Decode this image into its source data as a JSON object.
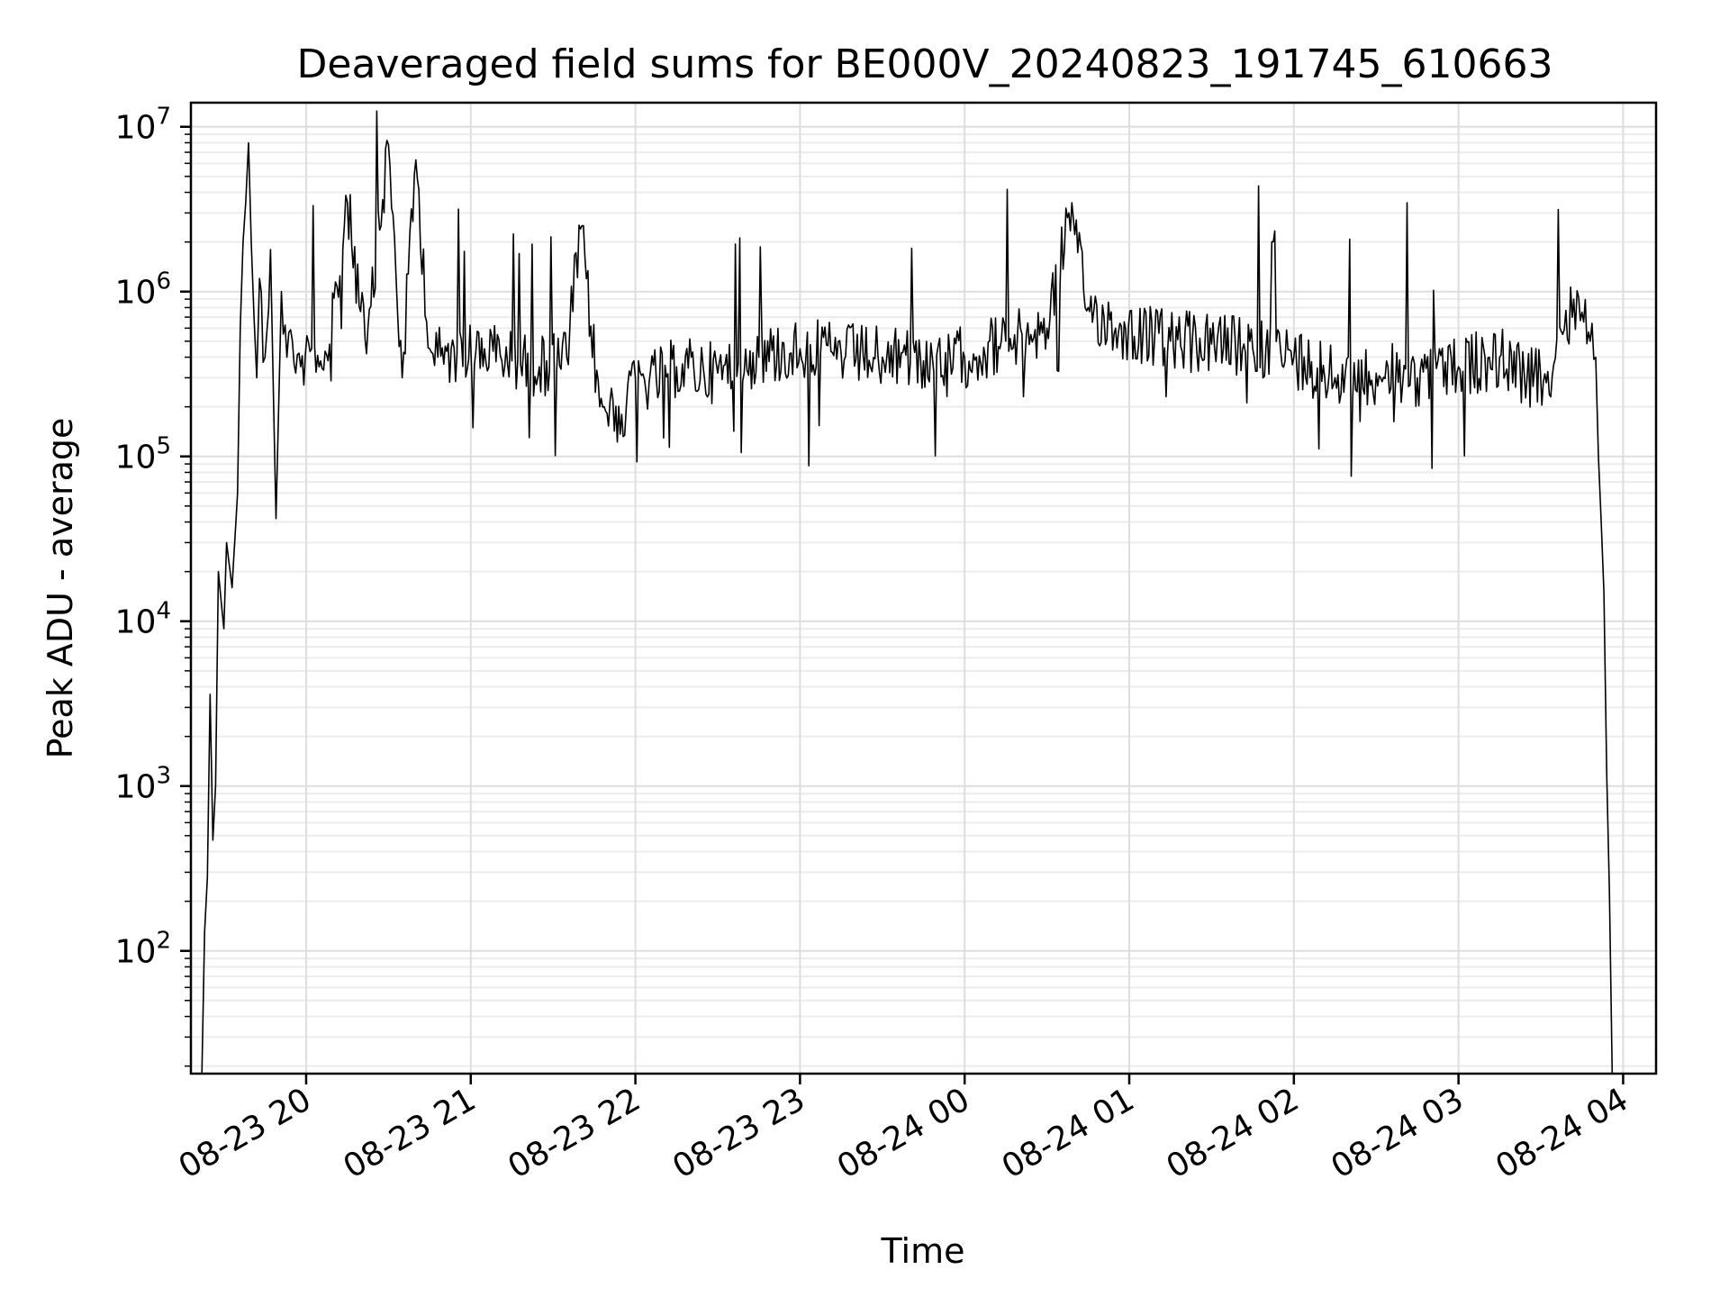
{
  "chart_data": {
    "type": "line",
    "title": "Deaveraged field sums for BE000V_20240823_191745_610663",
    "xlabel": "Time",
    "ylabel": "Peak ADU - average",
    "yscale": "log",
    "ylim": [
      18,
      14000000
    ],
    "xlim": [
      "2024-08-23 19:18",
      "2024-08-24 04:12"
    ],
    "xticks": [
      {
        "time": "2024-08-23 20:00",
        "label": "08-23 20"
      },
      {
        "time": "2024-08-23 21:00",
        "label": "08-23 21"
      },
      {
        "time": "2024-08-23 22:00",
        "label": "08-23 22"
      },
      {
        "time": "2024-08-23 23:00",
        "label": "08-23 23"
      },
      {
        "time": "2024-08-24 00:00",
        "label": "08-24 00"
      },
      {
        "time": "2024-08-24 01:00",
        "label": "08-24 01"
      },
      {
        "time": "2024-08-24 02:00",
        "label": "08-24 02"
      },
      {
        "time": "2024-08-24 03:00",
        "label": "08-24 03"
      },
      {
        "time": "2024-08-24 04:00",
        "label": "08-24 04"
      }
    ],
    "yticks": [
      {
        "value": 100,
        "base": "10",
        "exp": "2"
      },
      {
        "value": 1000,
        "base": "10",
        "exp": "3"
      },
      {
        "value": 10000,
        "base": "10",
        "exp": "4"
      },
      {
        "value": 100000,
        "base": "10",
        "exp": "5"
      },
      {
        "value": 1000000,
        "base": "10",
        "exp": "6"
      },
      {
        "value": 10000000,
        "base": "10",
        "exp": "7"
      }
    ],
    "grid": true,
    "line_color": "#000000",
    "series": [
      {
        "x": [
          "2024-08-23 19:22",
          "2024-08-23 19:23",
          "2024-08-23 19:24",
          "2024-08-23 19:25",
          "2024-08-23 19:26",
          "2024-08-23 19:27",
          "2024-08-23 19:28",
          "2024-08-23 19:30",
          "2024-08-23 19:31",
          "2024-08-23 19:33",
          "2024-08-23 19:35",
          "2024-08-23 19:36",
          "2024-08-23 19:37",
          "2024-08-23 19:38",
          "2024-08-23 19:39",
          "2024-08-23 19:40",
          "2024-08-23 19:41",
          "2024-08-23 19:42",
          "2024-08-23 19:43",
          "2024-08-23 19:45",
          "2024-08-23 19:47",
          "2024-08-23 19:49",
          "2024-08-23 19:51",
          "2024-08-23 19:53",
          "2024-08-23 19:55",
          "2024-08-23 19:58",
          "2024-08-23 20:02",
          "2024-08-23 20:08",
          "2024-08-23 20:15",
          "2024-08-23 20:22",
          "2024-08-23 20:30",
          "2024-08-23 20:35",
          "2024-08-23 20:40",
          "2024-08-23 20:45",
          "2024-08-23 20:48",
          "2024-08-23 20:55",
          "2024-08-23 21:05",
          "2024-08-23 21:15",
          "2024-08-23 21:25",
          "2024-08-23 21:35",
          "2024-08-23 21:40",
          "2024-08-23 21:47",
          "2024-08-23 21:55",
          "2024-08-23 22:00",
          "2024-08-23 22:05",
          "2024-08-23 22:15",
          "2024-08-23 22:30",
          "2024-08-23 22:45",
          "2024-08-23 23:00",
          "2024-08-23 23:15",
          "2024-08-23 23:30",
          "2024-08-23 23:45",
          "2024-08-24 00:00",
          "2024-08-24 00:15",
          "2024-08-24 00:30",
          "2024-08-24 00:38",
          "2024-08-24 00:45",
          "2024-08-24 00:55",
          "2024-08-24 01:05",
          "2024-08-24 01:15",
          "2024-08-24 01:30",
          "2024-08-24 01:45",
          "2024-08-24 02:00",
          "2024-08-24 02:15",
          "2024-08-24 02:30",
          "2024-08-24 02:45",
          "2024-08-24 03:00",
          "2024-08-24 03:15",
          "2024-08-24 03:25",
          "2024-08-24 03:32",
          "2024-08-24 03:38",
          "2024-08-24 03:42",
          "2024-08-24 03:45",
          "2024-08-24 03:48",
          "2024-08-24 03:50",
          "2024-08-24 03:51",
          "2024-08-24 03:52",
          "2024-08-24 03:53",
          "2024-08-24 03:54",
          "2024-08-24 03:55",
          "2024-08-24 03:56"
        ],
        "y": [
          18,
          130,
          280,
          3600,
          470,
          1000,
          20000,
          9000,
          30000,
          16000,
          60000,
          600000,
          2000000,
          3500000,
          8000000,
          2000000,
          700000,
          300000,
          1200000,
          400000,
          1800000,
          42000,
          1000000,
          400000,
          500000,
          350000,
          450000,
          380000,
          3500000,
          420000,
          7800000,
          300000,
          6300000,
          450000,
          400000,
          420000,
          450000,
          380000,
          350000,
          400000,
          2400000,
          200000,
          180000,
          300000,
          280000,
          350000,
          320000,
          400000,
          450000,
          420000,
          400000,
          380000,
          400000,
          500000,
          600000,
          3000000,
          800000,
          600000,
          550000,
          500000,
          480000,
          450000,
          400000,
          300000,
          320000,
          300000,
          350000,
          400000,
          300000,
          280000,
          550000,
          900000,
          750000,
          500000,
          400000,
          100000,
          40000,
          15000,
          1200,
          230,
          18
        ]
      }
    ]
  }
}
